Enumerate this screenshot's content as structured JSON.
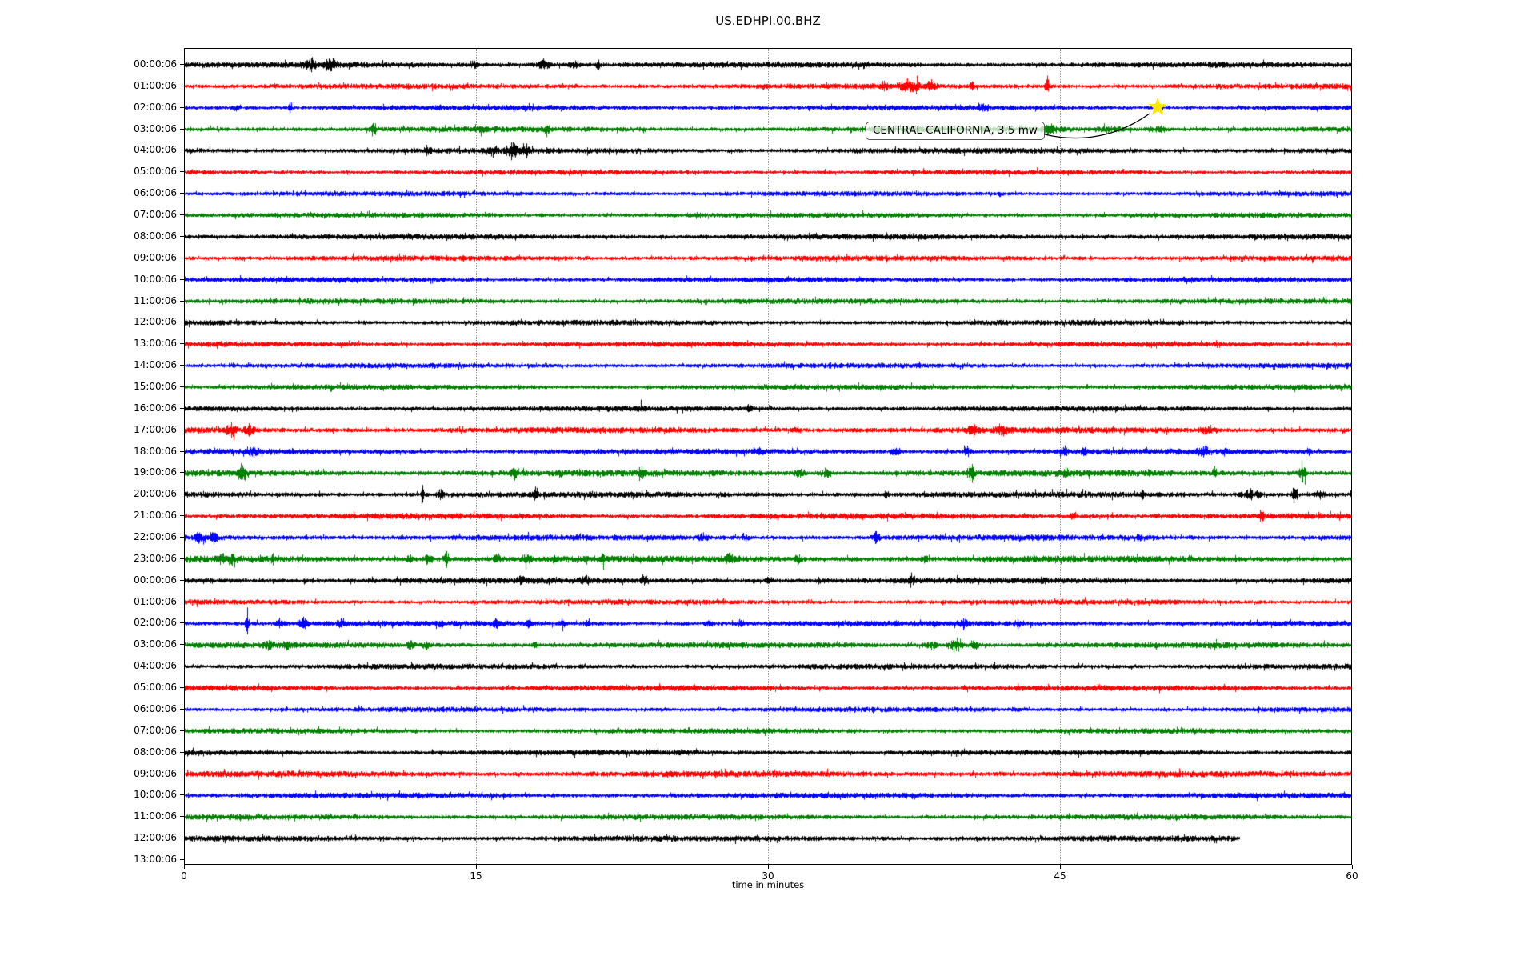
{
  "title": "US.EDHPI.00.BHZ",
  "axis": {
    "xlabel": "time in minutes",
    "x_ticks": [
      "0",
      "15",
      "30",
      "45",
      "60"
    ],
    "x_tick_values": [
      0,
      15,
      30,
      45,
      60
    ],
    "xlim": [
      0,
      60
    ]
  },
  "annotation": {
    "text": "CENTRAL CALIFORNIA, 3.5 mw",
    "row_index": 2,
    "minute": 50,
    "star_color": "#ffe600",
    "star_icon": "star-marker"
  },
  "colors": {
    "cycle": [
      "#000000",
      "#ff0000",
      "#0000ff",
      "#008000"
    ],
    "grid": "#9a9a9a",
    "background": "#ffffff",
    "text": "#000000"
  },
  "chart_data": {
    "type": "line",
    "subtype": "helicorder-dayplot",
    "title": "US.EDHPI.00.BHZ",
    "xlabel": "time in minutes",
    "xlim": [
      0,
      60
    ],
    "grid": "vertical-dotted-at-15-30-45",
    "row_interval_minutes": 60,
    "legend": "none",
    "rows": [
      {
        "label": "00:00:06",
        "color": "#000000",
        "amp": 2.8,
        "end": 60,
        "events": [
          [
            6.4,
            5,
            0.8
          ],
          [
            7.5,
            5,
            1.0
          ],
          [
            14.8,
            3,
            0.6
          ],
          [
            18.4,
            4,
            1.2
          ],
          [
            20.0,
            3.5,
            0.8
          ],
          [
            21.2,
            7,
            0.25
          ]
        ]
      },
      {
        "label": "01:00:06",
        "color": "#ff0000",
        "amp": 2.6,
        "end": 60,
        "events": [
          [
            35.9,
            3,
            0.6
          ],
          [
            37.2,
            6,
            1.4
          ],
          [
            38.3,
            4,
            0.8
          ],
          [
            40.4,
            5,
            0.3
          ],
          [
            44.3,
            8,
            0.35
          ]
        ]
      },
      {
        "label": "02:00:06",
        "color": "#0000ff",
        "amp": 2.5,
        "end": 60,
        "events": [
          [
            2.6,
            3,
            0.5
          ],
          [
            5.4,
            8,
            0.25
          ],
          [
            41.0,
            2.5,
            0.8
          ],
          [
            50.0,
            2,
            0.5
          ]
        ]
      },
      {
        "label": "03:00:06",
        "color": "#008000",
        "amp": 2.8,
        "end": 60,
        "events": [
          [
            9.7,
            6,
            0.4
          ],
          [
            15.3,
            3,
            0.5
          ],
          [
            18.6,
            6,
            0.35
          ],
          [
            44.5,
            3,
            1.5
          ],
          [
            47.5,
            2.5,
            2.0
          ],
          [
            50.0,
            2.5,
            1.5
          ]
        ]
      },
      {
        "label": "04:00:06",
        "color": "#000000",
        "amp": 2.8,
        "end": 60,
        "events": [
          [
            12.4,
            3.5,
            0.7
          ],
          [
            15.8,
            4,
            0.9
          ],
          [
            16.8,
            6,
            1.0
          ],
          [
            17.5,
            4,
            0.6
          ]
        ]
      },
      {
        "label": "05:00:06",
        "color": "#ff0000",
        "amp": 2.4,
        "end": 60,
        "events": []
      },
      {
        "label": "06:00:06",
        "color": "#0000ff",
        "amp": 2.4,
        "end": 60,
        "events": []
      },
      {
        "label": "07:00:06",
        "color": "#008000",
        "amp": 2.5,
        "end": 60,
        "events": []
      },
      {
        "label": "08:00:06",
        "color": "#000000",
        "amp": 2.8,
        "end": 60,
        "events": []
      },
      {
        "label": "09:00:06",
        "color": "#ff0000",
        "amp": 2.6,
        "end": 60,
        "events": []
      },
      {
        "label": "10:00:06",
        "color": "#0000ff",
        "amp": 2.5,
        "end": 60,
        "events": []
      },
      {
        "label": "11:00:06",
        "color": "#008000",
        "amp": 2.6,
        "end": 60,
        "events": []
      },
      {
        "label": "12:00:06",
        "color": "#000000",
        "amp": 2.6,
        "end": 60,
        "events": []
      },
      {
        "label": "13:00:06",
        "color": "#ff0000",
        "amp": 2.5,
        "end": 60,
        "events": []
      },
      {
        "label": "14:00:06",
        "color": "#0000ff",
        "amp": 2.5,
        "end": 60,
        "events": []
      },
      {
        "label": "15:00:06",
        "color": "#008000",
        "amp": 2.6,
        "end": 60,
        "events": []
      },
      {
        "label": "16:00:06",
        "color": "#000000",
        "amp": 2.6,
        "end": 60,
        "events": [
          [
            23.5,
            2.5,
            0.6
          ],
          [
            29.0,
            3,
            0.5
          ]
        ]
      },
      {
        "label": "17:00:06",
        "color": "#ff0000",
        "amp": 3.0,
        "end": 60,
        "events": [
          [
            2.4,
            6,
            0.9
          ],
          [
            3.3,
            5,
            0.7
          ],
          [
            31.4,
            3,
            0.5
          ],
          [
            40.5,
            4,
            1.2
          ],
          [
            42.0,
            3.5,
            1.0
          ],
          [
            52.5,
            4,
            1.2
          ]
        ]
      },
      {
        "label": "18:00:06",
        "color": "#0000ff",
        "amp": 2.8,
        "end": 60,
        "events": [
          [
            3.5,
            5,
            0.9
          ],
          [
            29.5,
            3,
            0.5
          ],
          [
            36.5,
            3.5,
            0.8
          ],
          [
            40.2,
            4,
            0.6
          ],
          [
            45.2,
            4,
            0.5
          ],
          [
            46.2,
            3.5,
            0.4
          ],
          [
            52.3,
            6,
            0.8
          ],
          [
            53.4,
            3.5,
            0.4
          ],
          [
            57.7,
            3,
            0.5
          ]
        ]
      },
      {
        "label": "19:00:06",
        "color": "#008000",
        "amp": 3.2,
        "end": 60,
        "events": [
          [
            2.9,
            7,
            0.6
          ],
          [
            16.9,
            6,
            0.4
          ],
          [
            19.3,
            3,
            0.4
          ],
          [
            23.4,
            5,
            0.5
          ],
          [
            31.6,
            4,
            0.7
          ],
          [
            33.0,
            4,
            0.6
          ],
          [
            40.4,
            8,
            0.5
          ],
          [
            45.2,
            5,
            0.4
          ],
          [
            52.9,
            7,
            0.3
          ],
          [
            57.4,
            8,
            0.5
          ]
        ]
      },
      {
        "label": "20:00:06",
        "color": "#000000",
        "amp": 2.9,
        "end": 60,
        "events": [
          [
            12.2,
            14,
            0.2
          ],
          [
            13.1,
            4,
            0.5
          ],
          [
            18.0,
            3,
            0.4
          ],
          [
            36.0,
            3,
            0.4
          ],
          [
            49.2,
            6,
            0.25
          ],
          [
            54.8,
            4,
            1.5
          ],
          [
            57.0,
            9,
            0.4
          ],
          [
            58.3,
            4,
            0.8
          ]
        ]
      },
      {
        "label": "21:00:06",
        "color": "#ff0000",
        "amp": 2.8,
        "end": 60,
        "events": [
          [
            45.6,
            3,
            0.5
          ],
          [
            55.3,
            7,
            0.3
          ]
        ]
      },
      {
        "label": "22:00:06",
        "color": "#0000ff",
        "amp": 2.9,
        "end": 60,
        "events": [
          [
            0.7,
            5,
            0.7
          ],
          [
            1.5,
            4,
            0.6
          ],
          [
            26.6,
            4,
            0.6
          ],
          [
            28.8,
            3,
            0.4
          ],
          [
            35.5,
            4,
            0.6
          ],
          [
            49.0,
            2.5,
            0.5
          ]
        ]
      },
      {
        "label": "23:00:06",
        "color": "#008000",
        "amp": 3.2,
        "end": 60,
        "events": [
          [
            1.9,
            4,
            0.5
          ],
          [
            2.4,
            7,
            0.4
          ],
          [
            4.5,
            3,
            0.4
          ],
          [
            11.6,
            5,
            0.6
          ],
          [
            12.5,
            6,
            0.7
          ],
          [
            13.4,
            8,
            0.4
          ],
          [
            16.0,
            4,
            0.5
          ],
          [
            17.5,
            4,
            0.8
          ],
          [
            19.0,
            4,
            0.4
          ],
          [
            21.5,
            4,
            0.5
          ],
          [
            28.0,
            3.5,
            1.2
          ],
          [
            31.5,
            4,
            0.6
          ],
          [
            38.0,
            3,
            0.5
          ]
        ]
      },
      {
        "label": "00:00:06",
        "color": "#000000",
        "amp": 2.9,
        "end": 60,
        "events": [
          [
            17.3,
            3,
            0.6
          ],
          [
            20.5,
            3.5,
            0.8
          ],
          [
            23.6,
            3,
            0.5
          ],
          [
            30.0,
            3,
            0.5
          ],
          [
            37.3,
            8,
            0.25
          ],
          [
            44.0,
            2.5,
            0.6
          ]
        ]
      },
      {
        "label": "01:00:06",
        "color": "#ff0000",
        "amp": 2.5,
        "end": 60,
        "events": []
      },
      {
        "label": "02:00:06",
        "color": "#0000ff",
        "amp": 2.8,
        "end": 60,
        "events": [
          [
            3.2,
            9,
            0.3
          ],
          [
            4.9,
            4,
            0.6
          ],
          [
            6.1,
            4.5,
            0.7
          ],
          [
            8.0,
            3,
            0.4
          ],
          [
            13.2,
            3,
            0.4
          ],
          [
            16.0,
            3.5,
            0.5
          ],
          [
            17.7,
            4.5,
            0.4
          ],
          [
            19.4,
            3.5,
            0.4
          ],
          [
            20.6,
            3,
            0.4
          ],
          [
            26.9,
            3.5,
            0.6
          ],
          [
            28.5,
            3.5,
            0.5
          ],
          [
            40.0,
            3.5,
            0.8
          ],
          [
            42.8,
            3,
            0.5
          ]
        ]
      },
      {
        "label": "03:00:06",
        "color": "#008000",
        "amp": 2.9,
        "end": 60,
        "events": [
          [
            4.3,
            3,
            0.7
          ],
          [
            5.2,
            3,
            0.5
          ],
          [
            11.6,
            4,
            0.6
          ],
          [
            12.4,
            4,
            0.6
          ],
          [
            18.0,
            3,
            0.4
          ],
          [
            38.3,
            4,
            1.0
          ],
          [
            39.6,
            5,
            1.2
          ],
          [
            40.5,
            4,
            0.7
          ]
        ]
      },
      {
        "label": "04:00:06",
        "color": "#000000",
        "amp": 2.7,
        "end": 60,
        "events": []
      },
      {
        "label": "05:00:06",
        "color": "#ff0000",
        "amp": 2.7,
        "end": 60,
        "events": []
      },
      {
        "label": "06:00:06",
        "color": "#0000ff",
        "amp": 2.5,
        "end": 60,
        "events": []
      },
      {
        "label": "07:00:06",
        "color": "#008000",
        "amp": 2.6,
        "end": 60,
        "events": []
      },
      {
        "label": "08:00:06",
        "color": "#000000",
        "amp": 2.7,
        "end": 60,
        "events": []
      },
      {
        "label": "09:00:06",
        "color": "#ff0000",
        "amp": 3.0,
        "end": 60,
        "events": []
      },
      {
        "label": "10:00:06",
        "color": "#0000ff",
        "amp": 2.7,
        "end": 60,
        "events": []
      },
      {
        "label": "11:00:06",
        "color": "#008000",
        "amp": 2.7,
        "end": 60,
        "events": []
      },
      {
        "label": "12:00:06",
        "color": "#000000",
        "amp": 2.8,
        "end": 54.2,
        "events": []
      },
      {
        "label": "13:00:06",
        "color": "#000000",
        "amp": 0,
        "end": 0,
        "events": []
      }
    ]
  }
}
